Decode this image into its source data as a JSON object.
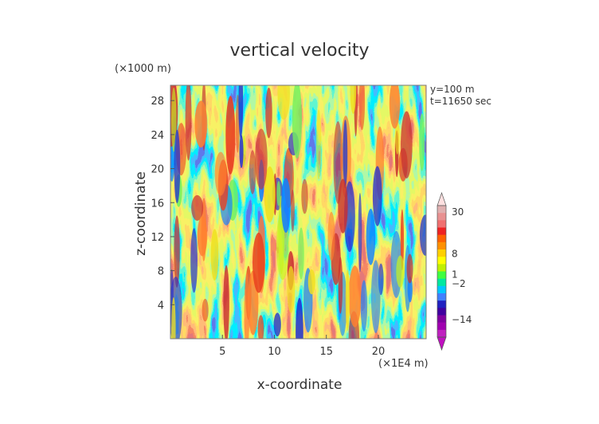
{
  "chart_data": {
    "type": "heatmap",
    "title": "vertical velocity",
    "xlabel": "x-coordinate",
    "ylabel": "z-coordinate",
    "x_unit": "(×1E4 m)",
    "y_unit": "(×1000 m)",
    "annotations": [
      "y=100 m",
      "t=11650 sec"
    ],
    "x_ticks": [
      5,
      10,
      15,
      20
    ],
    "y_ticks": [
      4,
      8,
      12,
      16,
      20,
      24,
      28
    ],
    "xlim": [
      0,
      24.6
    ],
    "ylim": [
      0,
      29.8
    ],
    "grid": false,
    "colorbar": {
      "placement": "right",
      "tick_labels": [
        "30",
        "8",
        "1",
        "−2",
        "−14"
      ],
      "tick_values": [
        30,
        8,
        1,
        -2,
        -14
      ],
      "band_colors": [
        "#e0b0b0",
        "#e89090",
        "#f07070",
        "#ee2222",
        "#ff6000",
        "#ff9000",
        "#ffd000",
        "#ffff00",
        "#c0f000",
        "#40ff40",
        "#00e8a0",
        "#00c8ff",
        "#4080ff",
        "#2020c0",
        "#4000a0",
        "#8000a0",
        "#a000b0",
        "#c020c0"
      ],
      "extremes": {
        "top_color": "#ffe0e0",
        "bottom_color": "#c010c0"
      }
    },
    "palette": [
      "#2030d0",
      "#1080ff",
      "#00d8ff",
      "#20e8a0",
      "#70f060",
      "#c8f020",
      "#f0e020",
      "#ffb020",
      "#ff8030",
      "#e84020",
      "#c83030"
    ]
  }
}
